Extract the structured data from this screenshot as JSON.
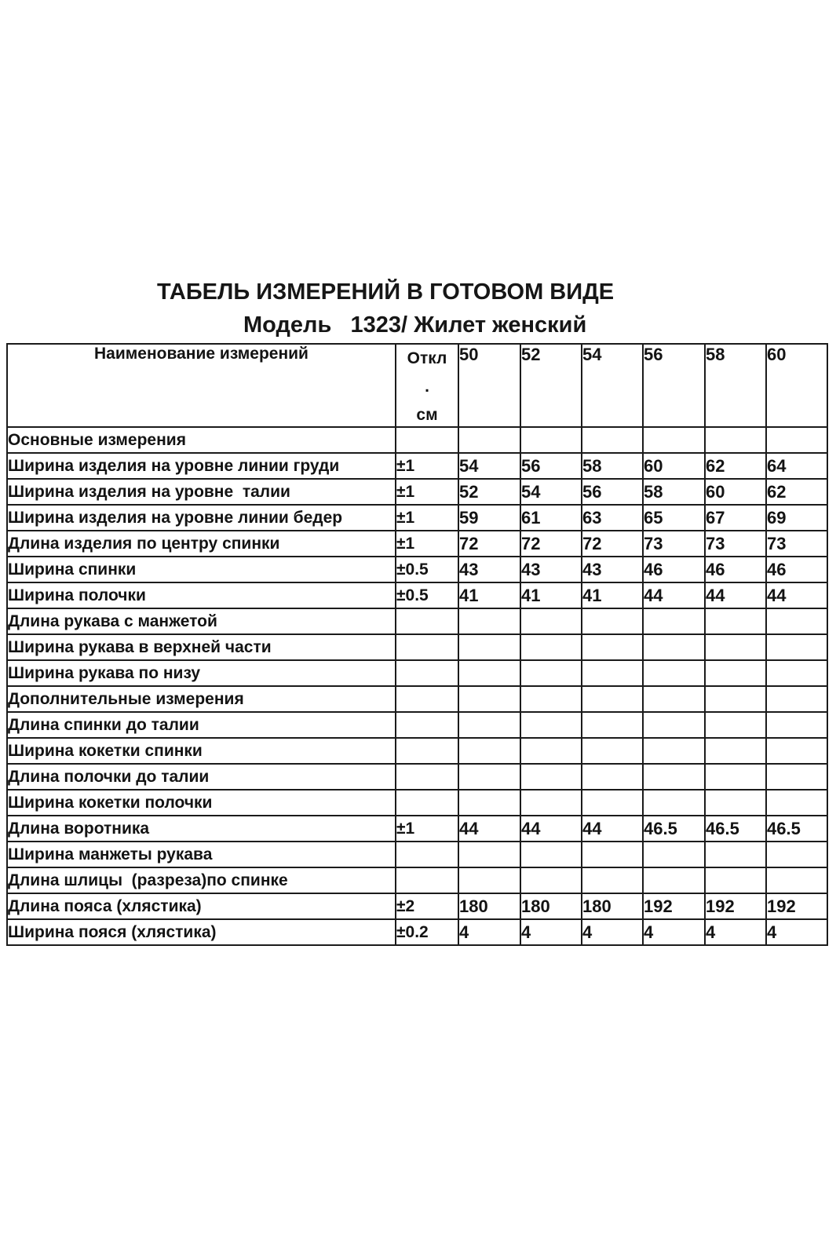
{
  "page": {
    "title": "ТАБЕЛЬ ИЗМЕРЕНИЙ В ГОТОВОМ ВИДЕ",
    "subtitle": "Модель   1323/ Жилет женский"
  },
  "table": {
    "name_header": "Наименование измерений",
    "tolerance_header_lines": [
      "Откл",
      ".",
      "см"
    ],
    "size_headers": [
      "50",
      "52",
      "54",
      "56",
      "58",
      "60"
    ],
    "rows": [
      {
        "name": "Основные измерения",
        "tolerance": "",
        "values": [
          "",
          "",
          "",
          "",
          "",
          ""
        ]
      },
      {
        "name": "Ширина изделия на уровне линии груди",
        "tolerance": "±1",
        "values": [
          "54",
          "56",
          "58",
          "60",
          "62",
          "64"
        ]
      },
      {
        "name": "Ширина изделия на уровне  талии",
        "tolerance": "±1",
        "values": [
          "52",
          "54",
          "56",
          "58",
          "60",
          "62"
        ]
      },
      {
        "name": "Ширина изделия на уровне линии бедер",
        "tolerance": "±1",
        "values": [
          "59",
          "61",
          "63",
          "65",
          "67",
          "69"
        ]
      },
      {
        "name": "Длина изделия по центру спинки",
        "tolerance": "±1",
        "values": [
          "72",
          "72",
          "72",
          "73",
          "73",
          "73"
        ]
      },
      {
        "name": "Ширина спинки",
        "tolerance": "±0.5",
        "values": [
          "43",
          "43",
          "43",
          "46",
          "46",
          "46"
        ]
      },
      {
        "name": "Ширина полочки",
        "tolerance": "±0.5",
        "values": [
          "41",
          "41",
          "41",
          "44",
          "44",
          "44"
        ]
      },
      {
        "name": "Длина рукава с манжетой",
        "tolerance": "",
        "values": [
          "",
          "",
          "",
          "",
          "",
          ""
        ]
      },
      {
        "name": "Ширина рукава в верхней части",
        "tolerance": "",
        "values": [
          "",
          "",
          "",
          "",
          "",
          ""
        ]
      },
      {
        "name": "Ширина рукава по низу",
        "tolerance": "",
        "values": [
          "",
          "",
          "",
          "",
          "",
          ""
        ]
      },
      {
        "name": "Дополнительные измерения",
        "tolerance": "",
        "values": [
          "",
          "",
          "",
          "",
          "",
          ""
        ]
      },
      {
        "name": "Длина спинки до талии",
        "tolerance": "",
        "values": [
          "",
          "",
          "",
          "",
          "",
          ""
        ]
      },
      {
        "name": "Ширина кокетки спинки",
        "tolerance": "",
        "values": [
          "",
          "",
          "",
          "",
          "",
          ""
        ]
      },
      {
        "name": "Длина полочки до талии",
        "tolerance": "",
        "values": [
          "",
          "",
          "",
          "",
          "",
          ""
        ]
      },
      {
        "name": "Ширина кокетки полочки",
        "tolerance": "",
        "values": [
          "",
          "",
          "",
          "",
          "",
          ""
        ]
      },
      {
        "name": "Длина воротника",
        "tolerance": "±1",
        "values": [
          "44",
          "44",
          "44",
          "46.5",
          "46.5",
          "46.5"
        ]
      },
      {
        "name": "Ширина манжеты рукава",
        "tolerance": "",
        "values": [
          "",
          "",
          "",
          "",
          "",
          ""
        ]
      },
      {
        "name": "Длина шлицы  (разреза)по спинке",
        "tolerance": "",
        "values": [
          "",
          "",
          "",
          "",
          "",
          ""
        ]
      },
      {
        "name": "Длина пояса (хлястика)",
        "tolerance": "±2",
        "values": [
          "180",
          "180",
          "180",
          "192",
          "192",
          "192"
        ]
      },
      {
        "name": "Ширина пояся (хлястика)",
        "tolerance": "±0.2",
        "values": [
          "4",
          "4",
          "4",
          "4",
          "4",
          "4"
        ]
      }
    ]
  }
}
